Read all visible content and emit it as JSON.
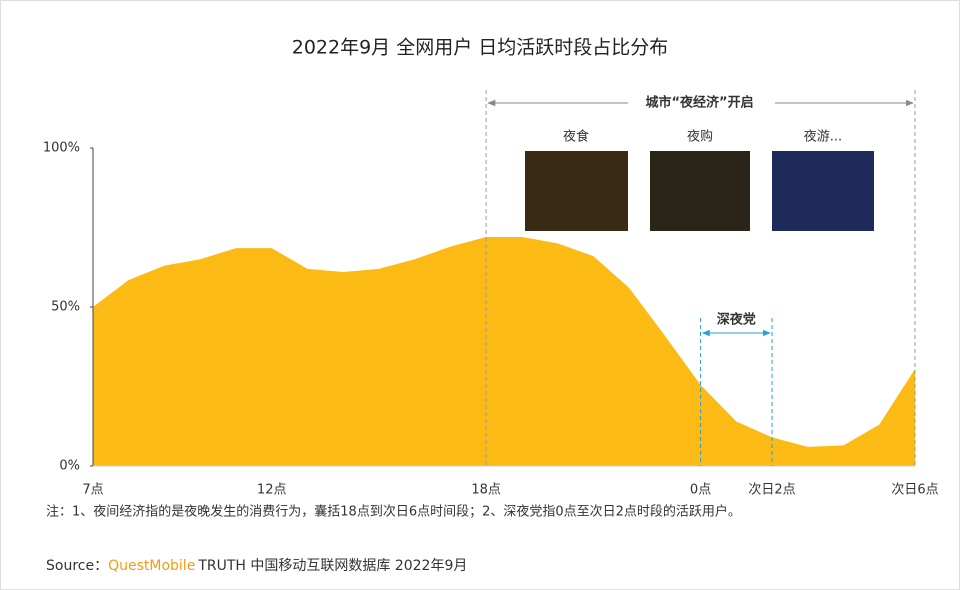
{
  "chart_data": {
    "type": "area",
    "title": "2022年9月 全网用户 日均活跃时段占比分布",
    "categories": [
      "7点",
      null,
      null,
      null,
      null,
      "12点",
      null,
      null,
      null,
      null,
      null,
      "18点",
      null,
      null,
      null,
      null,
      null,
      "0点",
      null,
      "次日2点",
      null,
      null,
      null,
      "次日6点"
    ],
    "values": [
      50,
      58.5,
      63,
      65,
      68.5,
      68.5,
      62,
      61,
      62,
      65,
      69,
      72,
      72,
      70,
      66,
      56,
      41,
      25.5,
      14,
      9,
      6,
      6.5,
      13,
      30.5
    ],
    "color": "#fcba14",
    "ylim": [
      0,
      100
    ],
    "yticks": [
      {
        "value": 0,
        "label": "0%"
      },
      {
        "value": 50,
        "label": "50%"
      },
      {
        "value": 100,
        "label": "100%"
      }
    ],
    "grid": false,
    "annotations": {
      "night_economy": "城市“夜经济”开启",
      "night_food": "夜食",
      "night_shopping": "夜购",
      "night_tour": "夜游...",
      "late_night": "深夜党"
    },
    "note": "注：1、夜间经济指的是夜晚发生的消费行为，囊括18点到次日6点时间段；2、深夜党指0点至次日2点时段的活跃用户。",
    "source_label": "Source：",
    "source_brand": "QuestMobile",
    "source_text": "TRUTH 中国移动互联网数据库 2022年9月"
  }
}
